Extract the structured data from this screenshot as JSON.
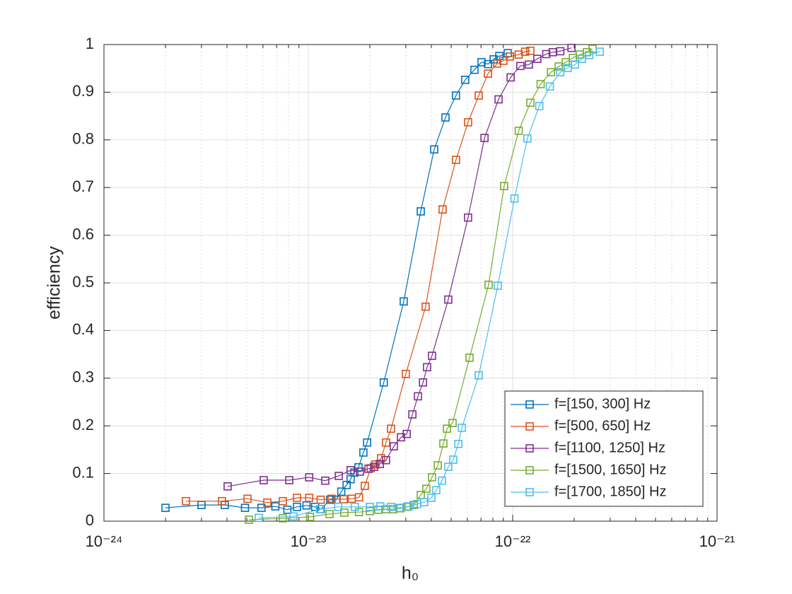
{
  "chart_data": {
    "type": "line",
    "xlabel": "h₀",
    "ylabel": "efficiency",
    "xscale": "log",
    "xlim": [
      1e-24,
      1e-21
    ],
    "xticks": [
      {
        "value": 1e-24,
        "label": "10⁻²⁴"
      },
      {
        "value": 1e-23,
        "label": "10⁻²³"
      },
      {
        "value": 1e-22,
        "label": "10⁻²²"
      },
      {
        "value": 1e-21,
        "label": "10⁻²¹"
      }
    ],
    "ylim": [
      0,
      1
    ],
    "yticks": [
      0,
      0.1,
      0.2,
      0.3,
      0.4,
      0.5,
      0.6,
      0.7,
      0.8,
      0.9,
      1
    ],
    "grid": true,
    "minor_grid": true,
    "legend": "lower right",
    "marker": "square",
    "series": [
      {
        "name": "f=[150, 300] Hz",
        "color": "#0072BD",
        "x": [
          2e-24,
          3e-24,
          3.9e-24,
          4.9e-24,
          5.9e-24,
          6.9e-24,
          7.9e-24,
          8.8e-24,
          9.8e-24,
          1.08e-23,
          1.15e-23,
          1.28e-23,
          1.37e-23,
          1.45e-23,
          1.54e-23,
          1.61e-23,
          1.68e-23,
          1.76e-23,
          1.86e-23,
          1.94e-23,
          2.34e-23,
          2.93e-23,
          3.55e-23,
          4.13e-23,
          4.69e-23,
          5.28e-23,
          5.86e-23,
          6.5e-23,
          7.04e-23,
          7.57e-23,
          8.07e-23,
          8.6e-23,
          9.46e-23
        ],
        "values": [
          0.028,
          0.034,
          0.034,
          0.028,
          0.028,
          0.031,
          0.024,
          0.03,
          0.033,
          0.03,
          0.025,
          0.045,
          0.045,
          0.062,
          0.076,
          0.088,
          0.102,
          0.113,
          0.144,
          0.165,
          0.291,
          0.461,
          0.65,
          0.78,
          0.847,
          0.893,
          0.926,
          0.947,
          0.963,
          0.959,
          0.969,
          0.976,
          0.982
        ]
      },
      {
        "name": "f=[500, 650] Hz",
        "color": "#D95319",
        "x": [
          2.52e-24,
          3.78e-24,
          5.04e-24,
          6.3e-24,
          7.5e-24,
          8.8e-24,
          1.01e-23,
          1.15e-23,
          1.3e-23,
          1.49e-23,
          1.63e-23,
          1.77e-23,
          1.89e-23,
          2.02e-23,
          2.13e-23,
          2.27e-23,
          2.4e-23,
          2.54e-23,
          3e-23,
          3.75e-23,
          4.54e-23,
          5.28e-23,
          6.05e-23,
          6.82e-23,
          7.57e-23,
          8.4e-23,
          9e-23,
          9.7e-23,
          1.07e-22,
          1.15e-22,
          1.22e-22
        ],
        "values": [
          0.042,
          0.042,
          0.047,
          0.039,
          0.042,
          0.049,
          0.049,
          0.045,
          0.047,
          0.046,
          0.047,
          0.05,
          0.074,
          0.111,
          0.119,
          0.132,
          0.165,
          0.194,
          0.309,
          0.45,
          0.654,
          0.758,
          0.837,
          0.893,
          0.939,
          0.96,
          0.966,
          0.975,
          0.979,
          0.985,
          0.987
        ]
      },
      {
        "name": "f=[1100, 1250] Hz",
        "color": "#7E2F8E",
        "x": [
          4.03e-24,
          6.05e-24,
          8.07e-24,
          1.01e-23,
          1.21e-23,
          1.41e-23,
          1.61e-23,
          1.79e-23,
          1.97e-23,
          2.1e-23,
          2.24e-23,
          2.4e-23,
          2.62e-23,
          2.84e-23,
          3.03e-23,
          3.23e-23,
          3.44e-23,
          3.64e-23,
          3.81e-23,
          4.03e-23,
          4.84e-23,
          6.05e-23,
          7.28e-23,
          8.53e-23,
          9.77e-23,
          1.09e-22,
          1.2e-22,
          1.32e-22,
          1.46e-22,
          1.57e-22,
          1.71e-22,
          1.94e-22
        ],
        "values": [
          0.073,
          0.086,
          0.086,
          0.092,
          0.085,
          0.095,
          0.107,
          0.104,
          0.11,
          0.114,
          0.12,
          0.128,
          0.157,
          0.176,
          0.183,
          0.224,
          0.262,
          0.291,
          0.323,
          0.347,
          0.465,
          0.637,
          0.804,
          0.885,
          0.931,
          0.955,
          0.958,
          0.97,
          0.98,
          0.984,
          0.986,
          0.993
        ]
      },
      {
        "name": "f=[1500, 1650] Hz",
        "color": "#77AC30",
        "x": [
          5.12e-24,
          7.5e-24,
          1.02e-23,
          1.27e-23,
          1.5e-23,
          1.77e-23,
          2e-23,
          2.2e-23,
          2.4e-23,
          2.6e-23,
          2.82e-23,
          3.05e-23,
          3.28e-23,
          3.55e-23,
          3.78e-23,
          4.03e-23,
          4.3e-23,
          4.58e-23,
          4.77e-23,
          5.08e-23,
          6.15e-23,
          7.62e-23,
          9.08e-23,
          1.07e-22,
          1.22e-22,
          1.37e-22,
          1.54e-22,
          1.68e-22,
          1.82e-22,
          1.97e-22,
          2.13e-22,
          2.31e-22,
          2.46e-22
        ],
        "values": [
          0.003,
          0.006,
          0.009,
          0.015,
          0.018,
          0.019,
          0.021,
          0.024,
          0.025,
          0.025,
          0.027,
          0.03,
          0.034,
          0.055,
          0.068,
          0.092,
          0.117,
          0.163,
          0.194,
          0.206,
          0.343,
          0.496,
          0.703,
          0.819,
          0.878,
          0.917,
          0.942,
          0.954,
          0.963,
          0.972,
          0.979,
          0.984,
          0.991
        ]
      },
      {
        "name": "f=[1700, 1850] Hz",
        "color": "#4DBEEE",
        "x": [
          5.72e-24,
          8.46e-24,
          1.14e-23,
          1.4e-23,
          1.69e-23,
          2e-23,
          2.25e-23,
          2.54e-23,
          2.79e-23,
          3.1e-23,
          3.41e-23,
          3.69e-23,
          4e-23,
          4.23e-23,
          4.51e-23,
          4.84e-23,
          5.12e-23,
          5.42e-23,
          5.64e-23,
          6.82e-23,
          8.45e-23,
          1.02e-22,
          1.18e-22,
          1.35e-22,
          1.52e-22,
          1.71e-22,
          1.86e-22,
          2.02e-22,
          2.18e-22,
          2.37e-22,
          2.67e-22
        ],
        "values": [
          0.007,
          0.01,
          0.025,
          0.03,
          0.03,
          0.03,
          0.031,
          0.03,
          0.028,
          0.031,
          0.036,
          0.04,
          0.049,
          0.065,
          0.085,
          0.114,
          0.129,
          0.162,
          0.196,
          0.306,
          0.494,
          0.677,
          0.803,
          0.871,
          0.912,
          0.942,
          0.951,
          0.958,
          0.97,
          0.978,
          0.985
        ]
      }
    ]
  }
}
